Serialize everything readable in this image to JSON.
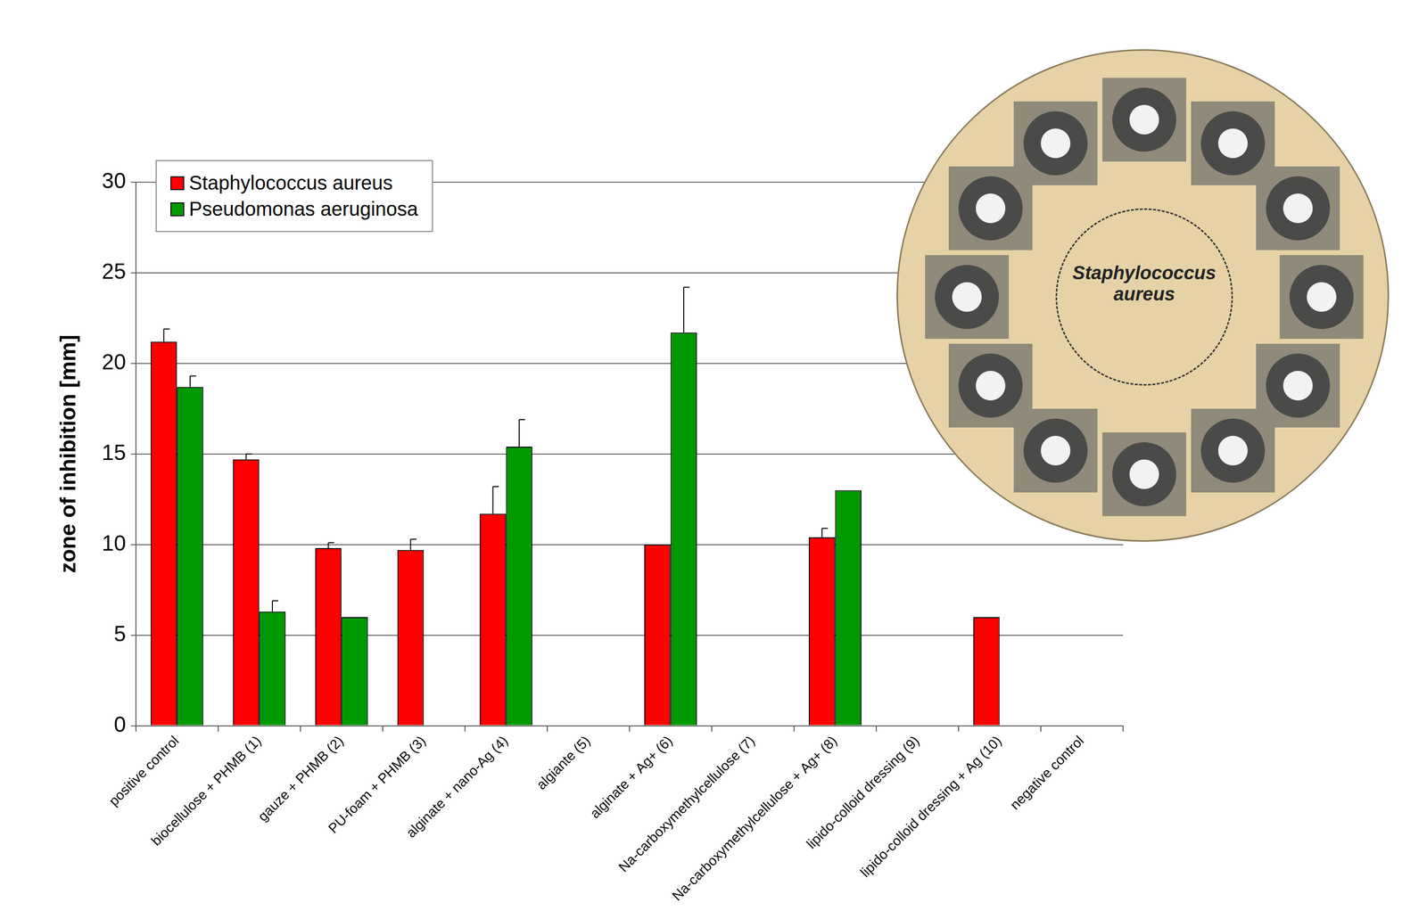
{
  "chart_data": {
    "type": "bar",
    "y_label": "zone of inhibition [mm]",
    "categories": [
      "positive control",
      "biocellulose + PHMB (1)",
      "gauze + PHMB (2)",
      "PU-foam + PHMB (3)",
      "alginate + nano-Ag (4)",
      "algiante (5)",
      "alginate + Ag+ (6)",
      "Na-carboxymethylcellulose (7)",
      "Na-carboxymethylcellulose + Ag+ (8)",
      "lipido-colloid dressing (9)",
      "lipido-colloid dressing + Ag (10)",
      "negative control"
    ],
    "series": [
      {
        "name": "Staphylococcus aureus",
        "color": "#ff0000",
        "values": [
          21.2,
          14.7,
          9.8,
          9.7,
          11.7,
          0,
          10.0,
          0,
          10.4,
          0,
          6.0,
          0
        ],
        "errors": [
          0.7,
          0.3,
          0.3,
          0.6,
          1.5,
          null,
          null,
          null,
          0.5,
          null,
          null,
          null
        ]
      },
      {
        "name": "Pseudomonas aeruginosa",
        "color": "#009900",
        "values": [
          18.7,
          6.3,
          6.0,
          0,
          15.4,
          0,
          21.7,
          0,
          13.0,
          0,
          0,
          0
        ],
        "errors": [
          0.6,
          0.6,
          null,
          null,
          1.5,
          null,
          2.5,
          null,
          null,
          null,
          null,
          null
        ]
      }
    ],
    "ylim": [
      0,
      30
    ],
    "yticks": [
      0,
      5,
      10,
      15,
      20,
      25,
      30
    ],
    "grid": true,
    "legend": "upper left",
    "inset_label": "Staphylococcus aureus"
  }
}
